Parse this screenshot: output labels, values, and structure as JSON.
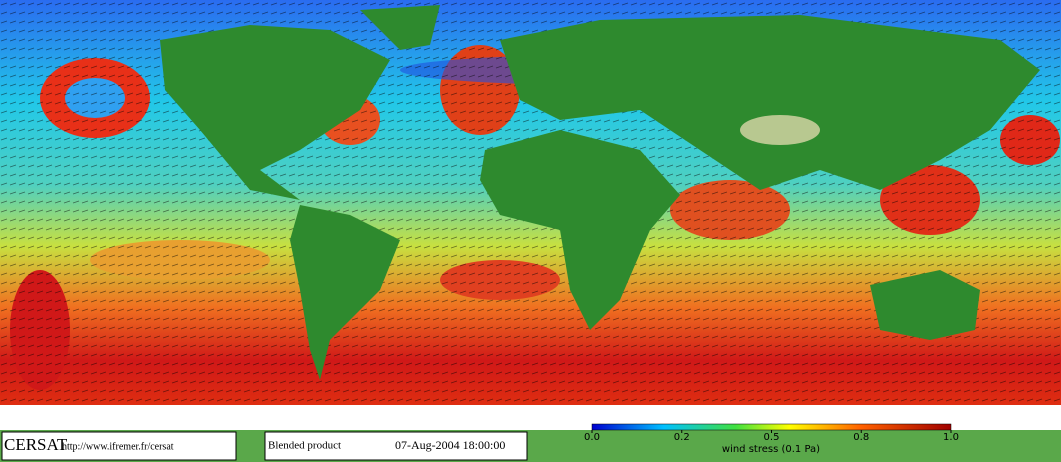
{
  "logo": "CERSAT",
  "url": "http://www.ifremer.fr/cersat",
  "product": "Blended product",
  "timestamp": "07-Aug-2004 18:00:00",
  "colorbar": {
    "label": "wind stress (0.1 Pa)",
    "ticks": [
      {
        "value": 0,
        "label": "0.0"
      },
      {
        "value": 0.2,
        "label": "0.2"
      },
      {
        "value": 0.5,
        "label": "0.5"
      },
      {
        "value": 0.8,
        "label": "0.8"
      },
      {
        "value": 1,
        "label": "1.0"
      }
    ]
  }
}
